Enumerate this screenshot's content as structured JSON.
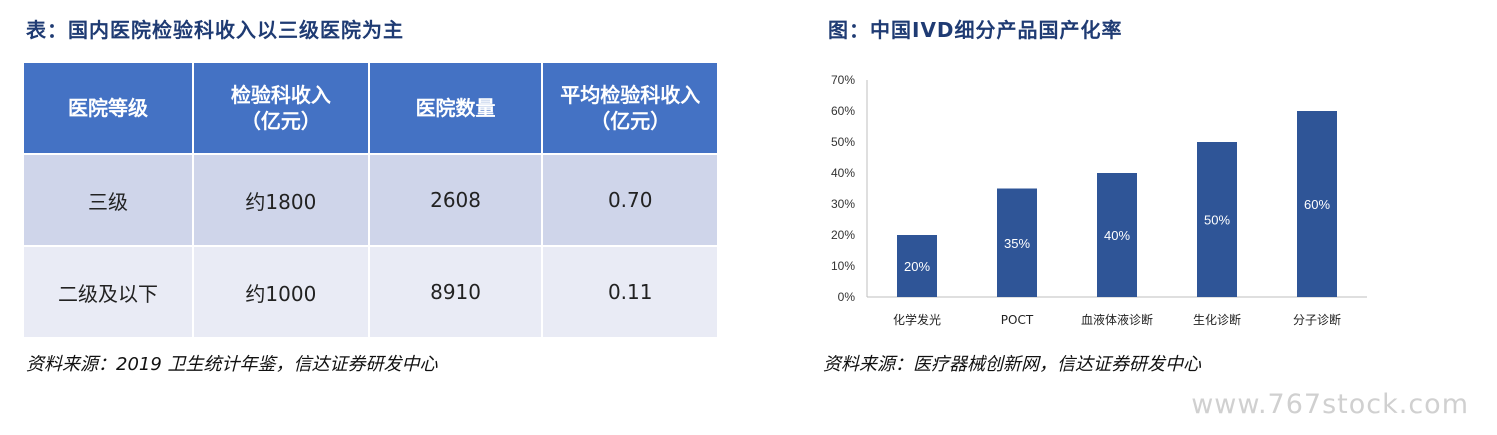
{
  "table": {
    "title": "表：国内医院检验科收入以三级医院为主",
    "headers": [
      {
        "line1": "医院等级",
        "line2": ""
      },
      {
        "line1": "检验科收入",
        "line2": "（亿元）"
      },
      {
        "line1": "医院数量",
        "line2": ""
      },
      {
        "line1": "平均检验科收入",
        "line2": "（亿元）"
      }
    ],
    "rows": [
      [
        "三级",
        "约1800",
        "2608",
        "0.70"
      ],
      [
        "二级及以下",
        "约1000",
        "8910",
        "0.11"
      ]
    ],
    "source": "资料来源：2019 卫生统计年鉴，信达证券研发中心"
  },
  "chart_data": {
    "type": "bar",
    "title": "图：中国IVD细分产品国产化率",
    "categories": [
      "化学发光",
      "POCT",
      "血液体液诊断",
      "生化诊断",
      "分子诊断"
    ],
    "values": [
      20,
      35,
      40,
      50,
      60
    ],
    "data_labels": [
      "20%",
      "35%",
      "40%",
      "50%",
      "60%"
    ],
    "ylim": [
      0,
      70
    ],
    "yticks": [
      "0%",
      "10%",
      "20%",
      "30%",
      "40%",
      "50%",
      "60%",
      "70%"
    ],
    "xlabel": "",
    "ylabel": "",
    "bar_color": "#2f5597",
    "grid": false,
    "source": "资料来源：医疗器械创新网，信达证券研发中心"
  },
  "watermark": "www.767stock.com"
}
